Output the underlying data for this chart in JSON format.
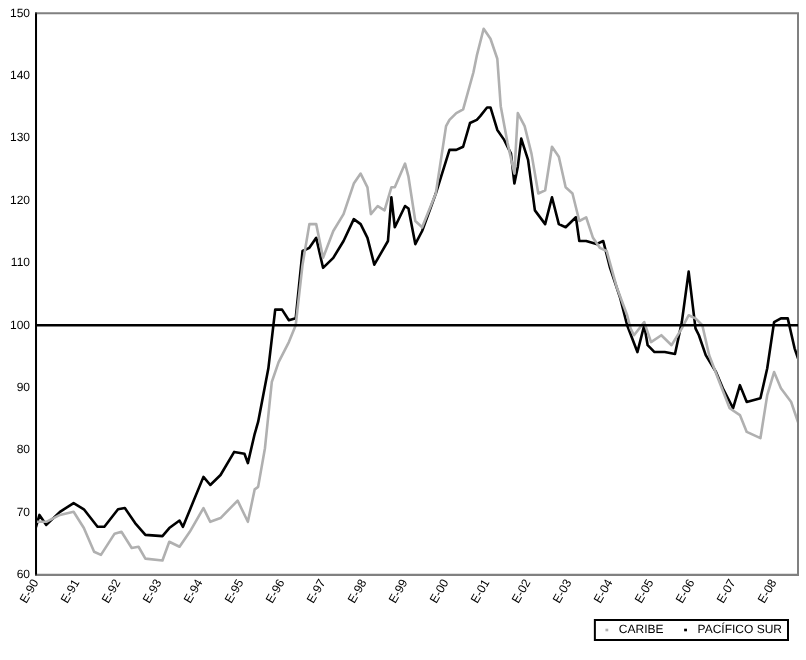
{
  "chart_data": {
    "type": "line",
    "xlim": [
      "1990-01",
      "2008-08"
    ],
    "ylim": [
      60,
      150
    ],
    "yticks": [
      60,
      70,
      80,
      90,
      100,
      110,
      120,
      130,
      140,
      150
    ],
    "xticks": [
      {
        "value": "1990-01",
        "label": "E-90"
      },
      {
        "value": "1991-01",
        "label": "E-91"
      },
      {
        "value": "1992-01",
        "label": "E-92"
      },
      {
        "value": "1993-01",
        "label": "E-93"
      },
      {
        "value": "1994-01",
        "label": "E-94"
      },
      {
        "value": "1995-01",
        "label": "E-95"
      },
      {
        "value": "1996-01",
        "label": "E-96"
      },
      {
        "value": "1997-01",
        "label": "E-97"
      },
      {
        "value": "1998-01",
        "label": "E-98"
      },
      {
        "value": "1999-01",
        "label": "E-99"
      },
      {
        "value": "2000-01",
        "label": "E-00"
      },
      {
        "value": "2001-01",
        "label": "E-01"
      },
      {
        "value": "2002-01",
        "label": "E-02"
      },
      {
        "value": "2003-01",
        "label": "E-03"
      },
      {
        "value": "2004-01",
        "label": "E-04"
      },
      {
        "value": "2005-01",
        "label": "E-05"
      },
      {
        "value": "2006-01",
        "label": "E-06"
      },
      {
        "value": "2007-01",
        "label": "E-07"
      },
      {
        "value": "2008-01",
        "label": "E-08"
      }
    ],
    "grid": false,
    "legend": "bottom",
    "line_style": "solid",
    "ref_lines": [
      {
        "axis": "y",
        "value": 100,
        "color": "#000000"
      }
    ],
    "series": [
      {
        "name": "CARIBE",
        "color": "#b0b0b0",
        "x": [
          "1990-01",
          "1990-04",
          "1990-08",
          "1990-12",
          "1991-03",
          "1991-06",
          "1991-08",
          "1991-12",
          "1992-02",
          "1992-05",
          "1992-07",
          "1992-09",
          "1993-02",
          "1993-04",
          "1993-07",
          "1993-10",
          "1994-02",
          "1994-04",
          "1994-07",
          "1994-12",
          "1995-03",
          "1995-05",
          "1995-06",
          "1995-08",
          "1995-10",
          "1995-12",
          "1996-03",
          "1996-05",
          "1996-07",
          "1996-09",
          "1996-11",
          "1997-01",
          "1997-04",
          "1997-07",
          "1997-10",
          "1997-12",
          "1998-02",
          "1998-03",
          "1998-05",
          "1998-07",
          "1998-09",
          "1998-10",
          "1999-01",
          "1999-02",
          "1999-04",
          "1999-06",
          "1999-10",
          "2000-01",
          "2000-02",
          "2000-04",
          "2000-06",
          "2000-09",
          "2000-10",
          "2000-12",
          "2001-02",
          "2001-04",
          "2001-05",
          "2001-07",
          "2001-09",
          "2001-10",
          "2001-12",
          "2002-02",
          "2002-04",
          "2002-06",
          "2002-08",
          "2002-10",
          "2002-12",
          "2003-02",
          "2003-04",
          "2003-06",
          "2003-08",
          "2003-10",
          "2003-12",
          "2004-03",
          "2004-06",
          "2004-07",
          "2004-08",
          "2004-11",
          "2005-01",
          "2005-04",
          "2005-07",
          "2005-10",
          "2005-12",
          "2006-02",
          "2006-04",
          "2006-06",
          "2006-09",
          "2006-12",
          "2007-03",
          "2007-05",
          "2007-09",
          "2007-11",
          "2008-01",
          "2008-03",
          "2008-06",
          "2008-08"
        ],
        "values": [
          68.5,
          68.5,
          69.6,
          70.1,
          67.5,
          63.7,
          63.2,
          66.6,
          66.9,
          64.3,
          64.5,
          62.6,
          62.3,
          65.3,
          64.5,
          66.9,
          70.7,
          68.5,
          69.1,
          71.9,
          68.5,
          73.7,
          74.1,
          80.3,
          90.9,
          94.1,
          97.3,
          100.0,
          109.7,
          116.2,
          116.2,
          110.8,
          115.1,
          117.8,
          122.7,
          124.3,
          122.1,
          117.8,
          119.1,
          118.4,
          122.1,
          122.1,
          125.9,
          123.8,
          116.7,
          115.7,
          121.1,
          131.9,
          132.9,
          134.0,
          134.6,
          140.5,
          143.2,
          147.5,
          145.9,
          142.7,
          135.1,
          129.2,
          124.3,
          134.0,
          131.9,
          127.5,
          121.1,
          121.6,
          128.6,
          127.0,
          122.1,
          121.1,
          116.7,
          117.3,
          114.0,
          112.4,
          111.9,
          106.0,
          101.6,
          99.5,
          98.4,
          100.5,
          97.3,
          98.4,
          96.8,
          99.5,
          101.6,
          101.1,
          100.0,
          95.2,
          90.9,
          86.7,
          85.6,
          82.9,
          81.9,
          88.8,
          92.5,
          89.9,
          87.7,
          84.5
        ]
      },
      {
        "name": "PACÍFICO SUR",
        "color": "#000000",
        "x": [
          "1990-01",
          "1990-02",
          "1990-04",
          "1990-08",
          "1990-12",
          "1991-03",
          "1991-07",
          "1991-09",
          "1992-01",
          "1992-03",
          "1992-06",
          "1992-09",
          "1993-02",
          "1993-04",
          "1993-07",
          "1993-08",
          "1993-11",
          "1994-02",
          "1994-04",
          "1994-07",
          "1994-11",
          "1995-02",
          "1995-03",
          "1995-05",
          "1995-06",
          "1995-09",
          "1995-11",
          "1996-01",
          "1996-03",
          "1996-05",
          "1996-07",
          "1996-09",
          "1996-11",
          "1997-01",
          "1997-04",
          "1997-07",
          "1997-10",
          "1997-12",
          "1998-02",
          "1998-04",
          "1998-06",
          "1998-08",
          "1998-09",
          "1998-10",
          "1999-01",
          "1999-02",
          "1999-04",
          "1999-06",
          "1999-10",
          "2000-02",
          "2000-04",
          "2000-06",
          "2000-08",
          "2000-10",
          "2000-11",
          "2001-01",
          "2001-02",
          "2001-04",
          "2001-06",
          "2001-08",
          "2001-09",
          "2001-10",
          "2001-11",
          "2002-01",
          "2002-03",
          "2002-06",
          "2002-08",
          "2002-10",
          "2002-12",
          "2003-03",
          "2003-04",
          "2003-06",
          "2003-09",
          "2003-11",
          "2004-01",
          "2004-04",
          "2004-06",
          "2004-09",
          "2004-11",
          "2004-12",
          "2005-02",
          "2005-05",
          "2005-08",
          "2005-10",
          "2005-12",
          "2006-02",
          "2006-03",
          "2006-05",
          "2006-08",
          "2006-10",
          "2007-01",
          "2007-03",
          "2007-05",
          "2007-09",
          "2007-11",
          "2008-01",
          "2008-03",
          "2008-05",
          "2008-07",
          "2008-08"
        ],
        "values": [
          67.7,
          69.6,
          68.0,
          70.1,
          71.5,
          70.5,
          67.7,
          67.7,
          70.5,
          70.7,
          68.3,
          66.4,
          66.2,
          67.5,
          68.7,
          67.7,
          71.7,
          75.7,
          74.4,
          76.0,
          79.7,
          79.4,
          77.9,
          82.6,
          84.5,
          93.1,
          102.5,
          102.5,
          100.8,
          101.1,
          111.9,
          112.4,
          114.0,
          109.2,
          110.8,
          113.5,
          117.0,
          116.2,
          114.0,
          109.7,
          111.6,
          113.5,
          120.5,
          115.7,
          119.1,
          118.7,
          113.0,
          115.1,
          121.1,
          128.1,
          128.1,
          128.6,
          132.4,
          132.9,
          133.5,
          134.9,
          134.9,
          131.3,
          129.7,
          127.5,
          122.7,
          125.4,
          129.9,
          126.5,
          118.4,
          116.2,
          120.5,
          116.2,
          115.7,
          117.3,
          113.5,
          113.5,
          113.0,
          113.5,
          109.2,
          104.3,
          100.0,
          95.7,
          100.0,
          96.8,
          95.7,
          95.7,
          95.4,
          100.5,
          108.6,
          99.5,
          98.4,
          95.2,
          92.5,
          89.9,
          86.7,
          90.4,
          87.7,
          88.3,
          93.1,
          100.5,
          101.1,
          101.1,
          96.3,
          94.7
        ]
      }
    ]
  }
}
